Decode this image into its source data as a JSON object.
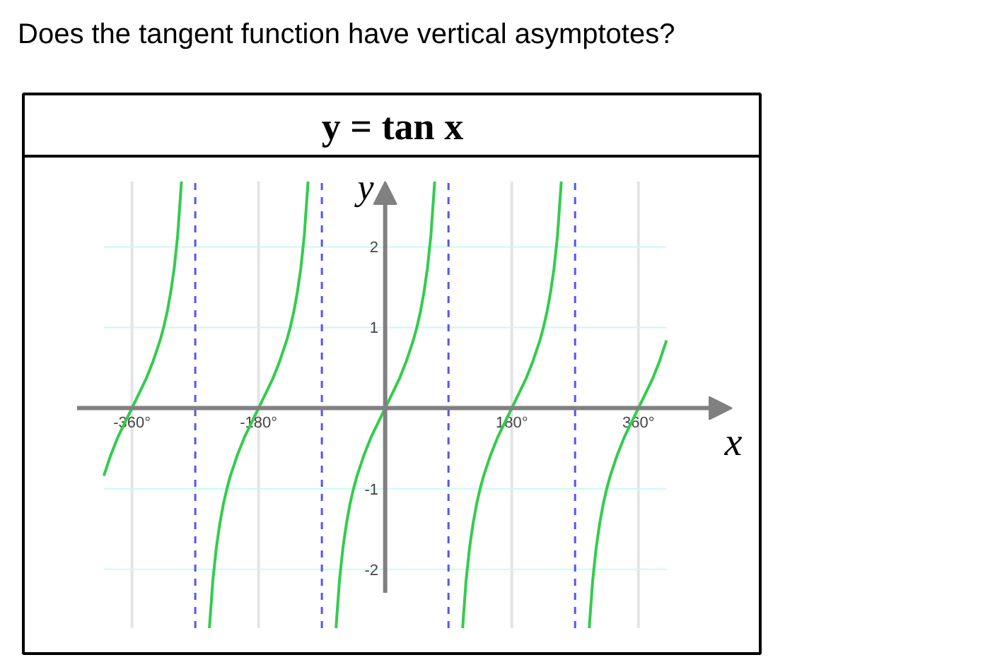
{
  "chart_data": {
    "type": "line",
    "title": "y = tan x",
    "xlabel": "x",
    "ylabel": "y",
    "annotations": [
      "Does the tangent function have vertical asymptotes?"
    ],
    "xlim": [
      -438,
      493
    ],
    "ylim": [
      -2.73,
      2.81
    ],
    "xticks": [
      {
        "value": -360,
        "label": "-360°"
      },
      {
        "value": -180,
        "label": "-180°"
      },
      {
        "value": 180,
        "label": "180°"
      },
      {
        "value": 360,
        "label": "360°"
      }
    ],
    "yticks": [
      -2,
      -1,
      1,
      2
    ],
    "grid": true,
    "ref_lines": [
      {
        "axis": "x",
        "value": -270,
        "color": "#5555ee",
        "line_style": "dashed"
      },
      {
        "axis": "x",
        "value": -90,
        "color": "#5555ee",
        "line_style": "dashed"
      },
      {
        "axis": "x",
        "value": 90,
        "color": "#5555ee",
        "line_style": "dashed"
      },
      {
        "axis": "x",
        "value": 270,
        "color": "#5555ee",
        "line_style": "dashed"
      }
    ],
    "series": [
      {
        "color": "#33cc4d",
        "x": [
          -400,
          -390,
          -380,
          -370,
          -360,
          -350,
          -340,
          -330,
          -320,
          -315,
          -310,
          -305,
          -300,
          -295,
          -289.6
        ],
        "values": [
          -0.84,
          -0.58,
          -0.36,
          -0.18,
          0,
          0.18,
          0.36,
          0.58,
          0.84,
          1,
          1.19,
          1.43,
          1.73,
          2.14,
          2.81
        ]
      },
      {
        "color": "#33cc4d",
        "x": [
          -249.9,
          -245,
          -240,
          -235,
          -230,
          -225,
          -220,
          -210,
          -200,
          -190,
          -180,
          -170,
          -160,
          -150,
          -140,
          -135,
          -130,
          -125,
          -120,
          -115,
          -109.6
        ],
        "values": [
          -2.73,
          -2.14,
          -1.73,
          -1.43,
          -1.19,
          -1,
          -0.84,
          -0.58,
          -0.36,
          -0.18,
          0,
          0.18,
          0.36,
          0.58,
          0.84,
          1,
          1.19,
          1.43,
          1.73,
          2.14,
          2.81
        ]
      },
      {
        "color": "#33cc4d",
        "x": [
          -69.9,
          -65,
          -60,
          -55,
          -50,
          -45,
          -40,
          -30,
          -20,
          -10,
          0,
          10,
          20,
          30,
          40,
          45,
          50,
          55,
          60,
          65,
          70.4
        ],
        "values": [
          -2.73,
          -2.14,
          -1.73,
          -1.43,
          -1.19,
          -1,
          -0.84,
          -0.58,
          -0.36,
          -0.18,
          0,
          0.18,
          0.36,
          0.58,
          0.84,
          1,
          1.19,
          1.43,
          1.73,
          2.14,
          2.81
        ]
      },
      {
        "color": "#33cc4d",
        "x": [
          110.1,
          115,
          120,
          125,
          130,
          135,
          140,
          150,
          160,
          170,
          180,
          190,
          200,
          210,
          220,
          225,
          230,
          235,
          240,
          245,
          250.4
        ],
        "values": [
          -2.73,
          -2.14,
          -1.73,
          -1.43,
          -1.19,
          -1,
          -0.84,
          -0.58,
          -0.36,
          -0.18,
          0,
          0.18,
          0.36,
          0.58,
          0.84,
          1,
          1.19,
          1.43,
          1.73,
          2.14,
          2.81
        ]
      },
      {
        "color": "#33cc4d",
        "x": [
          290.1,
          295,
          300,
          305,
          310,
          315,
          320,
          330,
          340,
          350,
          360,
          370,
          380,
          390,
          400
        ],
        "values": [
          -2.73,
          -2.14,
          -1.73,
          -1.43,
          -1.19,
          -1,
          -0.84,
          -0.58,
          -0.36,
          -0.18,
          0,
          0.18,
          0.36,
          0.58,
          0.84
        ]
      }
    ]
  }
}
